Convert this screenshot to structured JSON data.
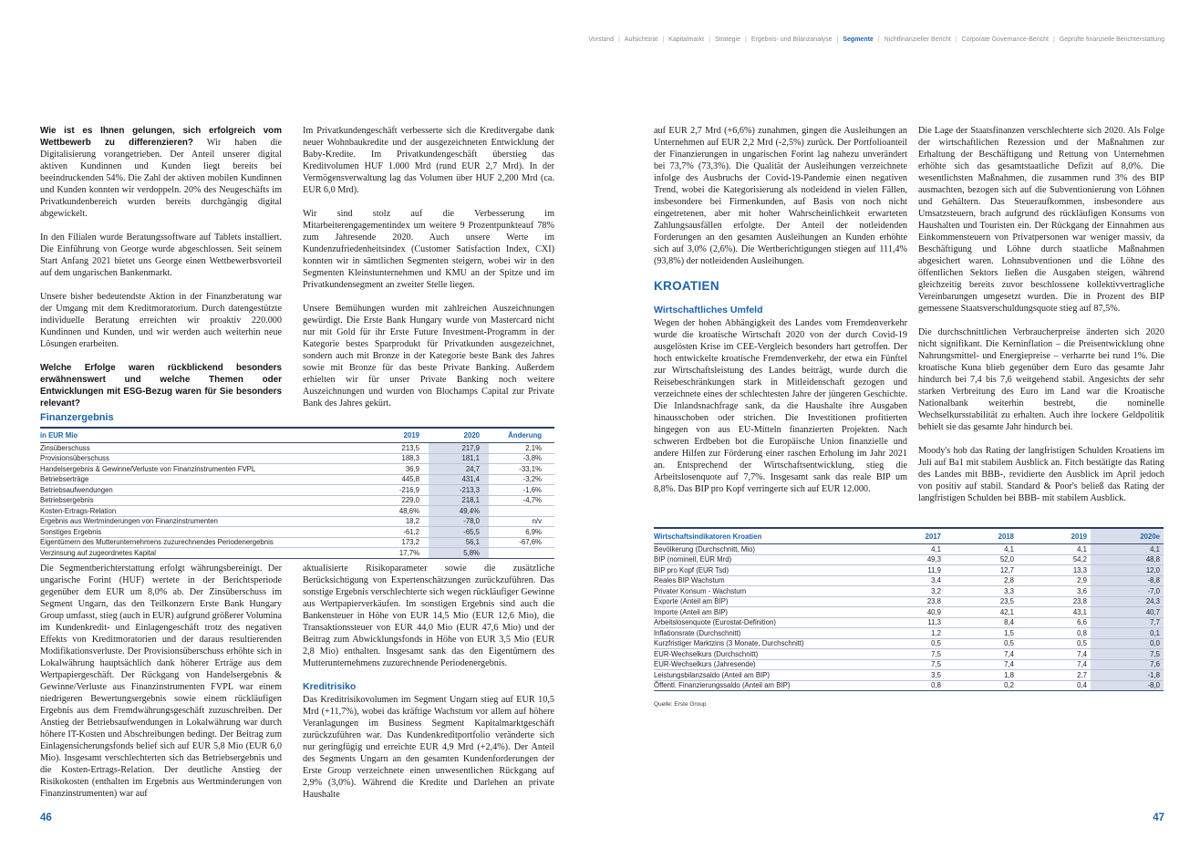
{
  "colors": {
    "accent_blue": "#1b63ae",
    "nav_gray": "#8b8b8b",
    "table_shade": "#d8dfeb",
    "row_line": "#b5c7dd",
    "dark_rule": "#2c3f63",
    "body_text": "#1a1a1a"
  },
  "nav": {
    "separator": "|",
    "items": [
      {
        "label": "Vorstand",
        "active": false
      },
      {
        "label": "Aufsichtsrat",
        "active": false
      },
      {
        "label": "Kapitalmarkt",
        "active": false
      },
      {
        "label": "Strategie",
        "active": false
      },
      {
        "label": "Ergebnis- und Bilanzanalyse",
        "active": false
      },
      {
        "label": "Segmente",
        "active": true
      },
      {
        "label": "Nichtfinanzieller Bericht",
        "active": false
      },
      {
        "label": "Corporate Governance-Bericht",
        "active": false
      },
      {
        "label": "Geprüfte finanzielle Berichterstattung",
        "active": false
      }
    ]
  },
  "left_page": {
    "page_number": "46",
    "col1": {
      "question1": "Wie ist es Ihnen gelungen, sich erfolgreich vom Wettbewerb zu differenzieren?",
      "question1_answer": "Wir haben die Digitalisierung vorangetrieben. Der Anteil unserer digital aktiven Kundinnen und Kunden liegt bereits bei beeindruckenden 54%. Die Zahl der aktiven mobilen Kundinnen und Kunden konnten wir verdoppeln. 20% des Neugeschäfts im Privatkundenbereich wurden bereits durchgängig digital abgewickelt.",
      "para2": "In den Filialen wurde Beratungssoftware auf Tablets installiert. Die Einführung von George wurde abgeschlossen. Seit seinem Start Anfang 2021 bietet uns George einen Wettbewerbsvorteil auf dem ungarischen Bankenmarkt.",
      "para3": "Unsere bisher bedeutendste Aktion in der Finanzberatung war der Umgang mit dem Kreditmoratorium. Durch datengestützte individuelle Beratung erreichten wir proaktiv 220.000 Kundinnen und Kunden, und wir werden auch weiterhin neue Lösungen erarbeiten.",
      "question2": "Welche Erfolge waren rückblickend besonders erwähnenswert und welche Themen oder Entwicklungen mit ESG-Bezug waren für Sie besonders relevant?",
      "continuation": "Die Segmentberichterstattung erfolgt währungsbereinigt. Der ungarische Forint (HUF) wertete in der Berichtsperiode gegenüber dem EUR um 8,0% ab. Der Zinsüberschuss im Segment Ungarn, das den Teilkonzern Erste Bank Hungary Group umfasst, stieg (auch in EUR) aufgrund größerer Volumina im Kundenkredit- und Einlagengeschäft trotz des negativen Effekts von Kreditmoratorien und der daraus resultierenden Modifikationsverluste. Der Provisionsüberschuss erhöhte sich in Lokalwährung hauptsächlich dank höherer Erträge aus dem Wertpapiergeschäft. Der Rückgang von Handelsergebnis & Gewinne/Verluste aus Finanzinstrumenten FVPL war einem niedrigeren Bewertungsergebnis sowie einem rückläufigen Ergebnis aus dem Fremdwährungsgeschäft zuzuschreiben. Der Anstieg der Betriebsaufwendungen in Lokalwährung war durch höhere IT-Kosten und Abschreibungen bedingt. Der Beitrag zum Einlagensicherungsfonds belief sich auf EUR 5,8 Mio (EUR 6,0 Mio). Insgesamt verschlechterten sich das Betriebsergebnis und die Kosten-Ertrags-Relation. Der deutliche Anstieg der Risikokosten (enthalten im Ergebnis aus Wertminderungen von Finanzinstrumenten) war auf"
    },
    "col2": {
      "para1": "Im Privatkundengeschäft verbesserte sich die Kreditvergabe dank neuer Wohnbaukredite und der ausgezeichneten Entwicklung der Baby-Kredite. Im Privatkundengeschäft überstieg das Kreditvolumen HUF 1.000 Mrd (rund EUR 2,7 Mrd). In der Vermögensverwaltung lag das Volumen über HUF 2,200 Mrd (ca. EUR 6,0 Mrd).",
      "para2": "Wir sind stolz auf die Verbesserung im Mitarbeiterengagementindex um weitere 9 Prozentpunkteauf 78% zum Jahresende 2020. Auch unsere Werte im Kundenzufriedenheitsindex (Customer Satisfaction Index, CXI) konnten wir in sämtlichen Segmenten steigern, wobei wir in den Segmenten Kleinstunternehmen und KMU an der Spitze und im Privatkundensegment an zweiter Stelle liegen.",
      "para3": "Unsere Bemühungen wurden mit zahlreichen Auszeichnungen gewürdigt. Die Erste Bank Hungary wurde von Mastercard nicht nur mit Gold für ihr Erste Future Investment-Programm in der Kategorie bestes Sparprodukt für Privatkunden ausgezeichnet, sondern auch mit Bronze in der Kategorie beste Bank des Jahres sowie mit Bronze für das beste Private Banking. Außerdem erhielten wir für unser Private Banking noch weitere Auszeichnungen und wurden von Blochamps Capital zur Private Bank des Jahres gekürt.",
      "continuation": "aktualisierte Risikoparameter sowie die zusätzliche Berücksichtigung von Expertenschätzungen zurückzuführen. Das sonstige Ergebnis verschlechterte sich wegen rückläufiger Gewinne aus Wertpapierverkäufen. Im sonstigen Ergebnis sind auch die Bankensteuer in Höhe von EUR 14,5 Mio (EUR 12,6 Mio), die Transaktionssteuer von EUR 44,0 Mio (EUR 47,6 Mio) und der Beitrag zum Abwicklungsfonds in Höhe von EUR 3,5 Mio (EUR 2,8 Mio) enthalten. Insgesamt sank das den Eigentümern des Mutterunternehmens zuzurechnende Periodenergebnis.",
      "kreditrisiko_heading": "Kreditrisiko",
      "kreditrisiko_para": "Das Kreditrisikovolumen im Segment Ungarn stieg auf EUR 10,5 Mrd (+11,7%), wobei das kräftige Wachstum vor allem auf höhere Veranlagungen im Business Segment Kapitalmarktgeschäft zurückzuführen war. Das Kundenkreditportfolio veränderte sich nur geringfügig und erreichte EUR 4,9 Mrd (+2,4%). Der Anteil des Segments Ungarn an den gesamten Kundenforderungen der Erste Group verzeichnete einen unwesentlichen Rückgang auf 2,9% (3,0%). Während die Kredite und Darlehen an private Haushalte"
    },
    "finanzergebnis_table": {
      "title": "Finanzergebnis",
      "first_col_header": "in EUR Mio",
      "year_columns": [
        "2019",
        "2020",
        "Änderung"
      ],
      "shaded_column": "2020",
      "rows": [
        [
          "Zinsüberschuss",
          "213,5",
          "217,9",
          "2,1%"
        ],
        [
          "Provisionsüberschuss",
          "188,3",
          "181,1",
          "-3,8%"
        ],
        [
          "Handelsergebnis & Gewinne/Verluste von Finanzinstrumenten FVPL",
          "36,9",
          "24,7",
          "-33,1%"
        ],
        [
          "Betriebserträge",
          "445,8",
          "431,4",
          "-3,2%"
        ],
        [
          "Betriebsaufwendungen",
          "-216,9",
          "-213,3",
          "-1,6%"
        ],
        [
          "Betriebsergebnis",
          "229,0",
          "218,1",
          "-4,7%"
        ],
        [
          "Kosten-Ertrags-Relation",
          "48,6%",
          "49,4%",
          ""
        ],
        [
          "Ergebnis aus Wertminderungen von Finanzinstrumenten",
          "18,2",
          "-78,0",
          "n/v"
        ],
        [
          "Sonstiges Ergebnis",
          "-61,2",
          "-65,5",
          "6,9%"
        ],
        [
          "Eigentümern des Mutterunternehmens zuzurechnendes Periodenergebnis",
          "173,2",
          "56,1",
          "-67,6%"
        ],
        [
          "Verzinsung auf zugeordnetes Kapital",
          "17,7%",
          "5,8%",
          ""
        ]
      ]
    }
  },
  "right_page": {
    "page_number": "47",
    "col3": {
      "para1": "auf EUR 2,7 Mrd (+6,6%) zunahmen, gingen die Ausleihungen an Unternehmen auf EUR 2,2 Mrd (-2,5%) zurück. Der Portfolioanteil der Finanzierungen in ungarischen Forint lag nahezu unverändert bei 73,7% (73,3%). Die Qualität der Ausleihungen verzeichnete infolge des Ausbruchs der Covid-19-Pandemie einen negativen Trend, wobei die Kategorisierung als notleidend in vielen Fällen, insbesondere bei Firmenkunden, auf Basis von noch nicht eingetretenen, aber mit hoher Wahrscheinlichkeit erwarteten Zahlungsausfällen erfolgte. Der Anteil der notleidenden Forderungen an den gesamten Ausleihungen an Kunden erhöhte sich auf 3,0% (2,6%). Die Wertberichtigungen stiegen auf 111,4% (93,8%) der notleidenden Ausleihungen.",
      "section_heading": "KROATIEN",
      "sub_heading": "Wirtschaftliches Umfeld",
      "para2": "Wegen der hohen Abhängigkeit des Landes vom Fremdenverkehr wurde die kroatische Wirtschaft 2020 von der durch Covid-19 ausgelösten Krise im CEE-Vergleich besonders hart getroffen. Der hoch entwickelte kroatische Fremdenverkehr, der etwa ein Fünftel zur Wirtschaftsleistung des Landes beiträgt, wurde durch die Reisebeschränkungen stark in Mitleidenschaft gezogen und verzeichnete eines der schlechtesten Jahre der jüngeren Geschichte. Die Inlandsnachfrage sank, da die Haushalte ihre Ausgaben hinausschoben oder strichen. Die Investitionen profitierten hingegen von aus EU-Mitteln finanzierten Projekten. Nach schweren Erdbeben bot die Europäische Union finanzielle und andere Hilfen zur Förderung einer raschen Erholung im Jahr 2021 an. Entsprechend der Wirtschaftsentwicklung, stieg die Arbeitslosenquote auf 7,7%. Insgesamt sank das reale BIP um 8,8%. Das BIP pro Kopf verringerte sich auf EUR 12.000."
    },
    "indicators_table": {
      "title": "Wirtschaftsindikatoren Kroatien",
      "year_columns": [
        "2017",
        "2018",
        "2019",
        "2020e"
      ],
      "shaded_column": "2020e",
      "rows": [
        [
          "Bevölkerung (Durchschnitt, Mio)",
          "4,1",
          "4,1",
          "4,1",
          "4,1"
        ],
        [
          "BIP (nominell, EUR Mrd)",
          "49,3",
          "52,0",
          "54,2",
          "48,8"
        ],
        [
          "BIP pro Kopf (EUR Tsd)",
          "11,9",
          "12,7",
          "13,3",
          "12,0"
        ],
        [
          "Reales BIP Wachstum",
          "3,4",
          "2,8",
          "2,9",
          "-8,8"
        ],
        [
          "Privater Konsum - Wachstum",
          "3,2",
          "3,3",
          "3,6",
          "-7,0"
        ],
        [
          "Exporte (Anteil am BIP)",
          "23,8",
          "23,5",
          "23,8",
          "24,3"
        ],
        [
          "Importe (Anteil am BIP)",
          "40,9",
          "42,1",
          "43,1",
          "40,7"
        ],
        [
          "Arbeitslosenquote (Eurostat-Definition)",
          "11,3",
          "8,4",
          "6,6",
          "7,7"
        ],
        [
          "Inflationsrate (Durchschnitt)",
          "1,2",
          "1,5",
          "0,8",
          "0,1"
        ],
        [
          "Kurzfristiger Marktzins (3 Monate, Durchschnitt)",
          "0,5",
          "0,5",
          "0,5",
          "0,0"
        ],
        [
          "EUR-Wechselkurs (Durchschnitt)",
          "7,5",
          "7,4",
          "7,4",
          "7,5"
        ],
        [
          "EUR-Wechselkurs (Jahresende)",
          "7,5",
          "7,4",
          "7,4",
          "7,6"
        ],
        [
          "Leistungsbilanzsaldo (Anteil am BIP)",
          "3,5",
          "1,8",
          "2,7",
          "-1,8"
        ],
        [
          "Öffentl. Finanzierungssaldo (Anteil am BIP)",
          "0,8",
          "0,2",
          "0,4",
          "-8,0"
        ]
      ],
      "source": "Quelle: Erste Group"
    },
    "col4": {
      "para1": "Die Lage der Staatsfinanzen verschlechterte sich 2020. Als Folge der wirtschaftlichen Rezession und der Maßnahmen zur Erhaltung der Beschäftigung und Rettung von Unternehmen erhöhte sich das gesamtstaatliche Defizit auf 8,0%. Die wesentlichsten Maßnahmen, die zusammen rund 3% des BIP ausmachten, bezogen sich auf die Subventionierung von Löhnen und Gehältern. Das Steueraufkommen, insbesondere aus Umsatzsteuern, brach aufgrund des rückläufigen Konsums von Haushalten und Touristen ein. Der Rückgang der Einnahmen aus Einkommensteuern von Privatpersonen war weniger massiv, da Beschäftigung und Löhne durch staatliche Maßnahmen abgesichert waren. Lohnsubventionen und die Löhne des öffentlichen Sektors ließen die Ausgaben steigen, während gleichzeitig bereits zuvor beschlossene kollektivvertragliche Vereinbarungen umgesetzt wurden. Die in Prozent des BIP gemessene Staatsverschuldungsquote stieg auf 87,5%.",
      "para2": "Die durchschnittlichen Verbraucherpreise änderten sich 2020 nicht signifikant. Die Kerninflation – die Preisentwicklung ohne Nahrungsmittel- und Energiepreise – verharrte bei rund 1%. Die kroatische Kuna blieb gegenüber dem Euro das gesamte Jahr hindurch bei 7,4 bis 7,6 weitgehend stabil. Angesichts der sehr starken Verbreitung des Euro im Land war die Kroatische Nationalbank weiterhin bestrebt, die nominelle Wechselkursstabilität zu erhalten. Auch ihre lockere Geldpolitik behielt sie das gesamte Jahr hindurch bei.",
      "para3": "Moody's hob das Rating der langfristigen Schulden Kroatiens im Juli auf Ba1 mit stabilem Ausblick an. Fitch bestätigte das Rating des Landes mit BBB-, revidierte den Ausblick im April jedoch von positiv auf stabil. Standard & Poor's beließ das Rating der langfristigen Schulden bei BBB- mit stabilem Ausblick."
    }
  }
}
